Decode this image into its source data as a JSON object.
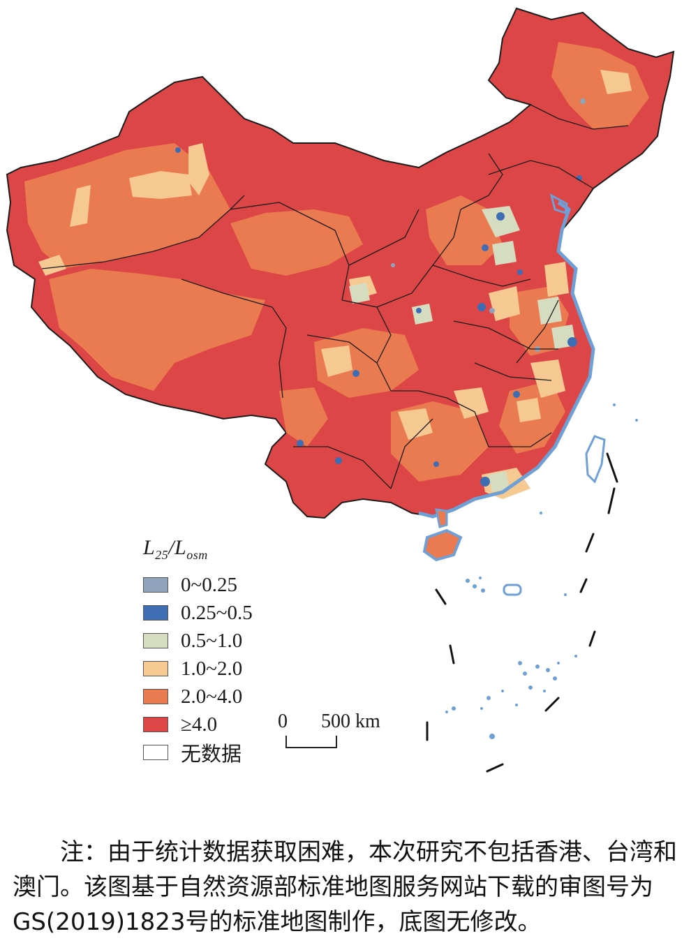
{
  "legend": {
    "title_main": "L",
    "title_sub1": "25",
    "title_slash": "/L",
    "title_sub2": "osm",
    "items": [
      {
        "label": "0~0.25",
        "color": "#8fa4bc"
      },
      {
        "label": "0.25~0.5",
        "color": "#3f6db3"
      },
      {
        "label": "0.5~1.0",
        "color": "#d6dcc0"
      },
      {
        "label": "1.0~2.0",
        "color": "#f6c993"
      },
      {
        "label": "2.0~4.0",
        "color": "#ea7a4f"
      },
      {
        "label": "≥4.0",
        "color": "#dd4646"
      },
      {
        "label": "无数据",
        "color": "#ffffff"
      }
    ]
  },
  "scalebar": {
    "zero": "0",
    "distance": "500 km"
  },
  "note": "注：由于统计数据获取困难，本次研究不包括香港、台湾和澳门。该图基于自然资源部标准地图服务网站下载的审图号为GS(2019)1823号的标准地图制作，底图无修改。",
  "colors": {
    "coast": "#6ea0d6",
    "border": "#1b1b1b"
  }
}
